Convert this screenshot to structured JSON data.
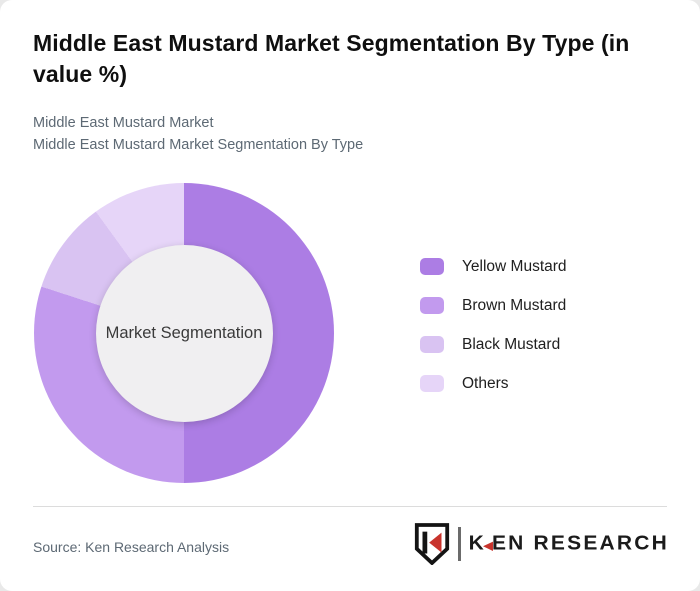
{
  "page": {
    "title": "Middle East Mustard Market Segmentation By Type (in value %)",
    "subtitle_line1": "Middle East Mustard Market",
    "subtitle_line2": "Middle East Mustard Market Segmentation By Type"
  },
  "chart_data": {
    "type": "pie",
    "variant": "donut",
    "title": "Middle East Mustard Market Segmentation By Type (in value %)",
    "center_label": "Market Segmentation",
    "categories": [
      "Yellow Mustard",
      "Brown Mustard",
      "Black Mustard",
      "Others"
    ],
    "values": [
      50,
      30,
      10,
      10
    ],
    "unit": "percent of market value",
    "colors": [
      "#ac7de4",
      "#c29aee",
      "#d9c3f2",
      "#e6d5f8"
    ],
    "start_angle_deg": 0,
    "direction": "clockwise",
    "legend_position": "right",
    "hole_color": "#f0eff1"
  },
  "footer": {
    "source": "Source: Ken Research Analysis",
    "logo_k": "K",
    "logo_rest": "EN RESEARCH",
    "logo_accent_color": "#c8332c"
  }
}
